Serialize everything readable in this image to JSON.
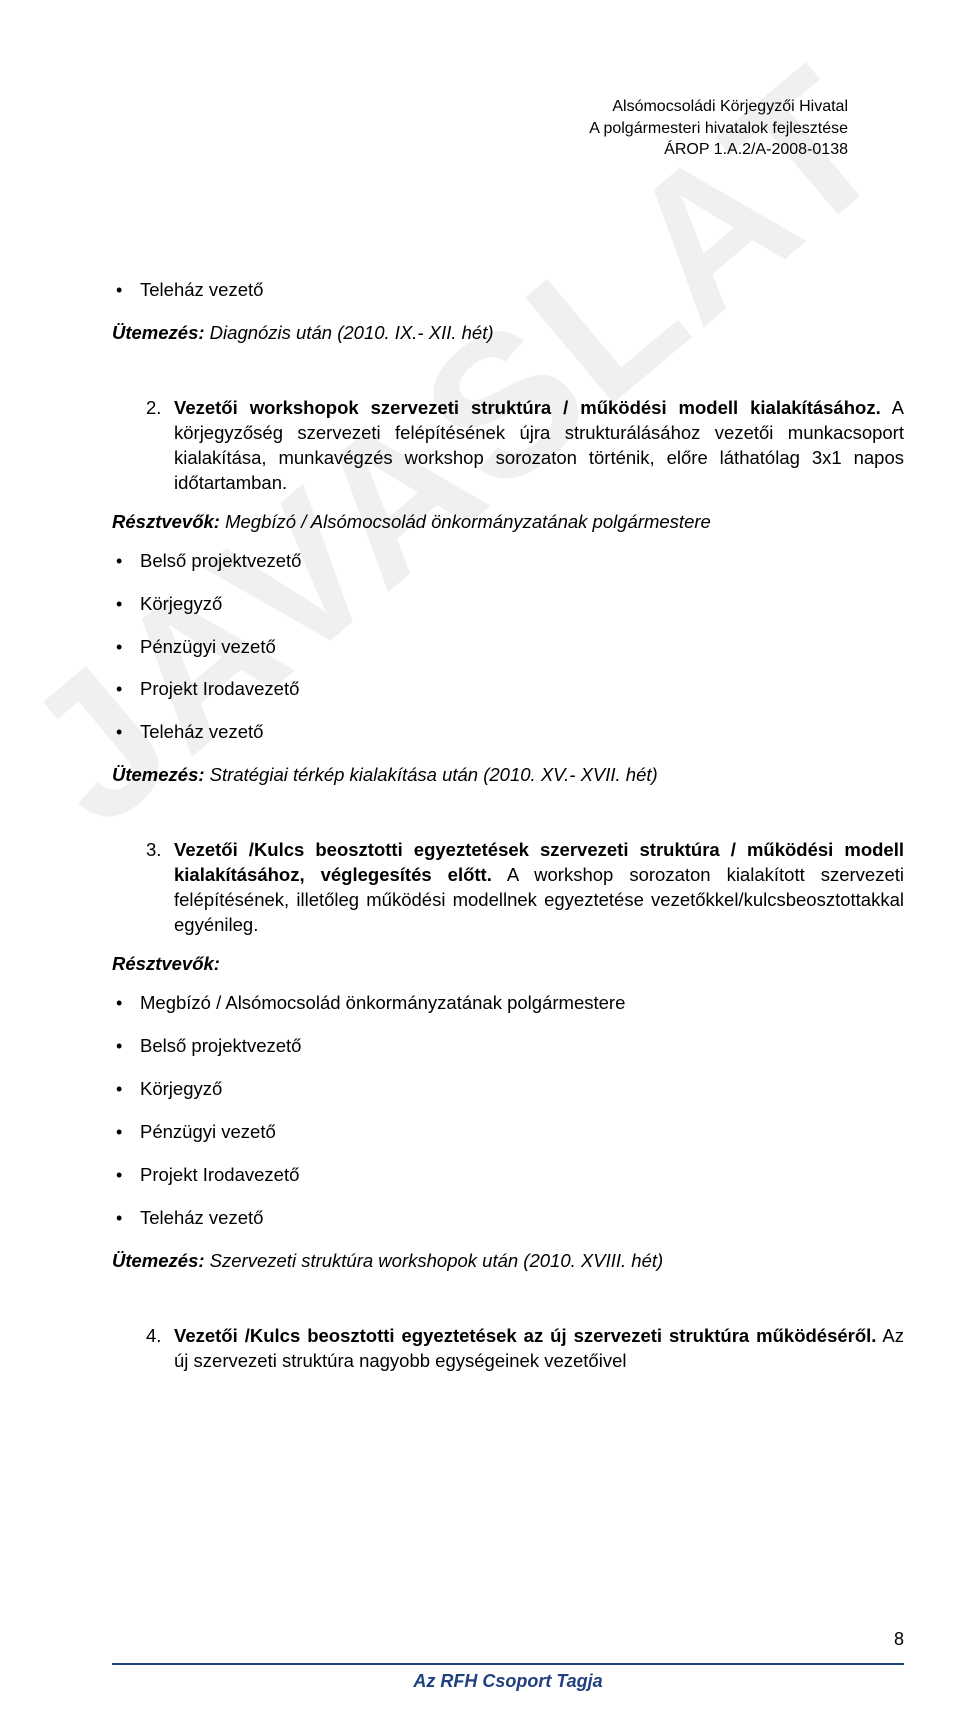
{
  "header": {
    "line1": "Alsómocsoládi Körjegyzői Hivatal",
    "line2": "A polgármesteri hivatalok fejlesztése",
    "line3": "ÁROP 1.A.2/A-2008-0138"
  },
  "watermark": "JAVASLAT",
  "b1": "Teleház vezető",
  "p1_label": "Ütemezés:",
  "p1_rest": " Diagnózis után (2010. IX.- XII. hét)",
  "item2_num": "2.",
  "item2_bold": "Vezetői workshopok szervezeti struktúra / működési modell kialakításához.",
  "item2_rest": " A körjegyzőség szervezeti felépítésének újra strukturálásához vezetői munkacsoport kialakítása, munkavégzés workshop sorozaton történik, előre láthatólag 3x1 napos időtartamban.",
  "p2_label": "Résztvevők:",
  "p2_rest": " Megbízó / Alsómocsolád önkormányzatának polgármestere",
  "list2": {
    "i0": "Belső projektvezető",
    "i1": "Körjegyző",
    "i2": "Pénzügyi vezető",
    "i3": "Projekt Irodavezető",
    "i4": "Teleház vezető"
  },
  "p3_label": "Ütemezés:",
  "p3_rest": " Stratégiai térkép kialakítása után (2010. XV.- XVII. hét)",
  "item3_num": "3.",
  "item3_bold": "Vezetői /Kulcs beosztotti egyeztetések szervezeti struktúra / működési modell kialakításához, véglegesítés előtt.",
  "item3_rest": " A workshop sorozaton kialakított szervezeti felépítésének, illetőleg működési modellnek egyeztetése vezetőkkel/kulcsbeosztottakkal egyénileg.",
  "p4_label": "Résztvevők:",
  "list3": {
    "i0": "Megbízó / Alsómocsolád önkormányzatának polgármestere",
    "i1": "Belső projektvezető",
    "i2": "Körjegyző",
    "i3": "Pénzügyi vezető",
    "i4": "Projekt Irodavezető",
    "i5": "Teleház vezető"
  },
  "p5_label": "Ütemezés:",
  "p5_rest": " Szervezeti struktúra workshopok után (2010. XVIII. hét)",
  "item4_num": "4.",
  "item4_bold": "Vezetői /Kulcs beosztotti egyeztetések az új szervezeti struktúra működéséről.",
  "item4_rest": " Az új szervezeti struktúra nagyobb egységeinek vezetőivel",
  "footer": "Az RFH Csoport Tagja",
  "pagenum": "8"
}
